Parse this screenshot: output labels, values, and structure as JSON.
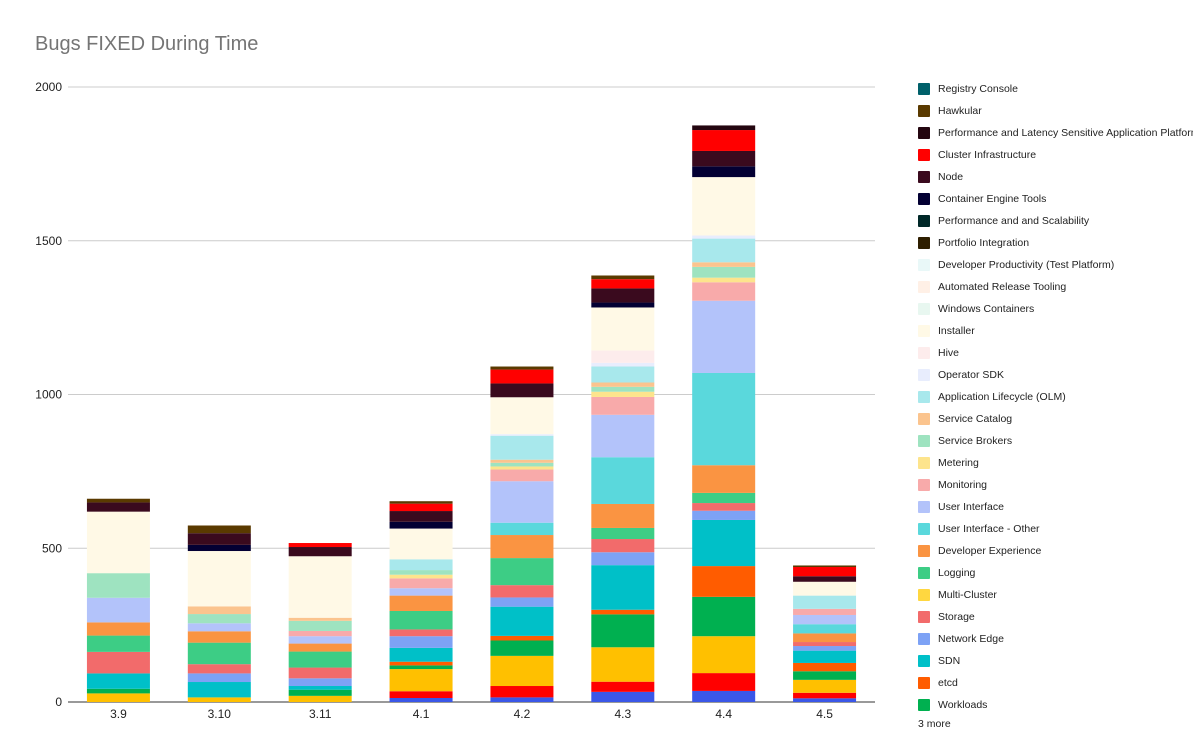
{
  "chart_data": {
    "type": "bar",
    "stacked": true,
    "title": "Bugs FIXED During Time",
    "xlabel": "",
    "ylabel": "",
    "ylim": [
      0,
      2000
    ],
    "yticks": [
      0,
      500,
      1000,
      1500,
      2000
    ],
    "grid": true,
    "legend_position": "right",
    "legend_more": "3 more",
    "categories": [
      "3.9",
      "3.10",
      "3.11",
      "4.1",
      "4.2",
      "4.3",
      "4.4",
      "4.5"
    ],
    "series": [
      {
        "name": "Network Edge",
        "color": "#3a57e8",
        "values": [
          0,
          0,
          0,
          13,
          15,
          33,
          36,
          12
        ]
      },
      {
        "name": "Storage",
        "color": "#ff0000",
        "values": [
          0,
          0,
          0,
          22,
          37,
          33,
          58,
          18
        ]
      },
      {
        "name": "Multi-Cluster",
        "color": "#ffc000",
        "values": [
          28,
          15,
          20,
          72,
          98,
          112,
          120,
          42
        ]
      },
      {
        "name": "Workloads",
        "color": "#00b050",
        "values": [
          15,
          0,
          20,
          12,
          50,
          107,
          128,
          28
        ]
      },
      {
        "name": "etcd",
        "color": "#ff5c00",
        "values": [
          0,
          0,
          0,
          12,
          15,
          15,
          100,
          27
        ]
      },
      {
        "name": "SDN",
        "color": "#00c0c8",
        "values": [
          50,
          50,
          12,
          45,
          95,
          145,
          150,
          40
        ]
      },
      {
        "name": "Network Edge",
        "color": "#7da2f5",
        "values": [
          0,
          28,
          25,
          38,
          30,
          42,
          30,
          15
        ]
      },
      {
        "name": "Storage",
        "color": "#f26b6b",
        "values": [
          70,
          30,
          35,
          22,
          40,
          43,
          25,
          13
        ]
      },
      {
        "name": "Logging",
        "color": "#3dcd85",
        "values": [
          53,
          70,
          52,
          60,
          88,
          36,
          33,
          0
        ]
      },
      {
        "name": "Developer Experience",
        "color": "#fa9442",
        "values": [
          43,
          37,
          26,
          50,
          75,
          78,
          90,
          28
        ]
      },
      {
        "name": "User Interface - Other",
        "color": "#5ad8dc",
        "values": [
          0,
          0,
          0,
          0,
          40,
          152,
          300,
          30
        ]
      },
      {
        "name": "User Interface",
        "color": "#b3c3fa",
        "values": [
          80,
          26,
          24,
          24,
          135,
          138,
          235,
          30
        ]
      },
      {
        "name": "Monitoring",
        "color": "#f8aaaa",
        "values": [
          0,
          0,
          17,
          32,
          38,
          58,
          60,
          20
        ]
      },
      {
        "name": "Metering",
        "color": "#fde48c",
        "values": [
          0,
          0,
          0,
          12,
          10,
          17,
          15,
          0
        ]
      },
      {
        "name": "Service Brokers",
        "color": "#9ee3c0",
        "values": [
          80,
          30,
          33,
          15,
          12,
          16,
          35,
          0
        ]
      },
      {
        "name": "Service Catalog",
        "color": "#fbc48e",
        "values": [
          0,
          25,
          10,
          0,
          10,
          14,
          15,
          0
        ]
      },
      {
        "name": "Application Lifecycle (OLM)",
        "color": "#a8e8ec",
        "values": [
          0,
          0,
          0,
          35,
          78,
          52,
          77,
          43
        ]
      },
      {
        "name": "Operator SDK",
        "color": "#e8edfd",
        "values": [
          0,
          0,
          0,
          0,
          5,
          12,
          10,
          0
        ]
      },
      {
        "name": "Hive",
        "color": "#fdecec",
        "values": [
          0,
          0,
          0,
          0,
          0,
          40,
          0,
          0
        ]
      },
      {
        "name": "Installer",
        "color": "#fff9e6",
        "values": [
          200,
          180,
          200,
          100,
          120,
          140,
          190,
          45
        ]
      },
      {
        "name": "Performance and and Scalability",
        "color": "#002828",
        "values": [
          0,
          0,
          0,
          0,
          0,
          0,
          0,
          0
        ]
      },
      {
        "name": "Container Engine Tools",
        "color": "#030033",
        "values": [
          0,
          20,
          0,
          22,
          0,
          16,
          35,
          0
        ]
      },
      {
        "name": "Node",
        "color": "#3a0a1e",
        "values": [
          30,
          38,
          30,
          35,
          45,
          46,
          50,
          18
        ]
      },
      {
        "name": "Cluster Infrastructure",
        "color": "#ff0000",
        "values": [
          0,
          0,
          13,
          24,
          45,
          30,
          68,
          30
        ]
      },
      {
        "name": "Performance and Latency Sensitive Application Platform",
        "color": "#240610",
        "values": [
          0,
          0,
          0,
          0,
          0,
          0,
          15,
          0
        ]
      },
      {
        "name": "Hawkular",
        "color": "#5a3a00",
        "values": [
          12,
          25,
          0,
          8,
          10,
          12,
          0,
          5
        ]
      }
    ]
  },
  "legend": {
    "items": [
      {
        "label": "Registry Console",
        "color": "#00606a"
      },
      {
        "label": "Hawkular",
        "color": "#5a3a00"
      },
      {
        "label": "Performance and Latency Sensitive Application Platform",
        "color": "#240610"
      },
      {
        "label": "Cluster Infrastructure",
        "color": "#ff0000"
      },
      {
        "label": "Node",
        "color": "#3a0a1e"
      },
      {
        "label": "Container Engine Tools",
        "color": "#030033"
      },
      {
        "label": "Performance and and Scalability",
        "color": "#002828"
      },
      {
        "label": "Portfolio Integration",
        "color": "#2e1e00"
      },
      {
        "label": "Developer Productivity (Test Platform)",
        "color": "#e9f8f8"
      },
      {
        "label": "Automated Release Tooling",
        "color": "#fff0e6"
      },
      {
        "label": "Windows Containers",
        "color": "#e8f7f0"
      },
      {
        "label": "Installer",
        "color": "#fff9e6"
      },
      {
        "label": "Hive",
        "color": "#fdecec"
      },
      {
        "label": "Operator SDK",
        "color": "#e8edfd"
      },
      {
        "label": "Application Lifecycle (OLM)",
        "color": "#a8e8ec"
      },
      {
        "label": "Service Catalog",
        "color": "#fbc48e"
      },
      {
        "label": "Service Brokers",
        "color": "#9ee3c0"
      },
      {
        "label": "Metering",
        "color": "#fde48c"
      },
      {
        "label": "Monitoring",
        "color": "#f8aaaa"
      },
      {
        "label": "User Interface",
        "color": "#b3c3fa"
      },
      {
        "label": "User Interface - Other",
        "color": "#5ad8dc"
      },
      {
        "label": "Developer Experience",
        "color": "#fa9442"
      },
      {
        "label": "Logging",
        "color": "#3dcd85"
      },
      {
        "label": "Multi-Cluster",
        "color": "#ffd740"
      },
      {
        "label": "Storage",
        "color": "#f26b6b"
      },
      {
        "label": "Network Edge",
        "color": "#7da2f5"
      },
      {
        "label": "SDN",
        "color": "#00c0c8"
      },
      {
        "label": "etcd",
        "color": "#ff5c00"
      },
      {
        "label": "Workloads",
        "color": "#00b050"
      }
    ]
  }
}
